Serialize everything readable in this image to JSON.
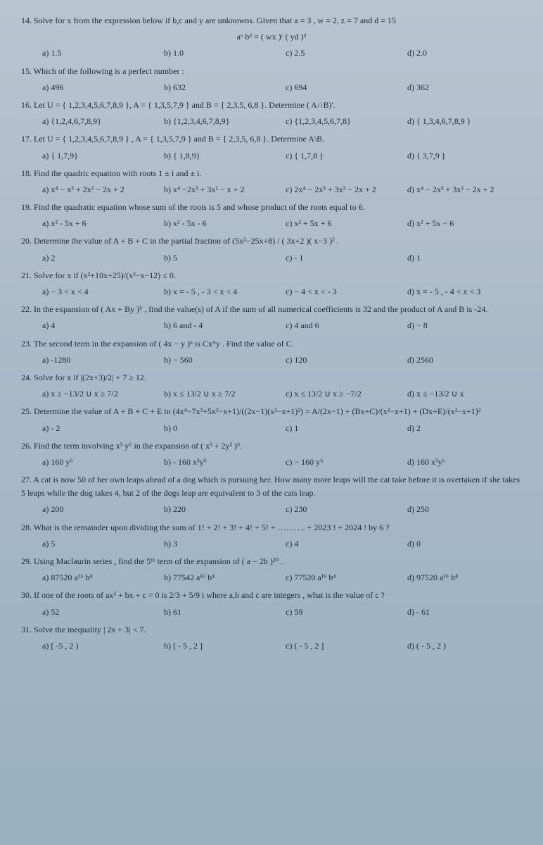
{
  "q14": {
    "text": "14. Solve for x from the expression below if b,c and y are unknowns. Given that a = 3 , w = 2, z = 7 and d = 15",
    "formula": "aˣ bᵈ = ( wx )ᶜ ( yd )ᵈ",
    "opts": [
      "a)  1.5",
      "b) 1.0",
      "c) 2.5",
      "d) 2.0"
    ]
  },
  "q15": {
    "text": "15. Which of the following is a perfect number :",
    "opts": [
      "a)  496",
      "b) 632",
      "c) 694",
      "d) 362"
    ]
  },
  "q16": {
    "text": "16. Let U = { 1,2,3,4,5,6,7,8,9 }, A = { 1,3,5,7,9 } and B = { 2,3,5, 6,8 }. Determine ( A∩B)'.",
    "opts": [
      "a)  {1,2,4,6,7,8,9}",
      "b) {1,2,3,4,6,7,8,9}",
      "c) {1,2,3,4,5,6,7,8}",
      "d) { 1,3,4,6,7,8,9 }"
    ]
  },
  "q17": {
    "text": "17. Let U = { 1,2,3,4,5,6,7,8,9 } , A = { 1,3,5,7,9 } and B = { 2,3,5, 6,8 }. Determine A\\B.",
    "opts": [
      "a)  { 1,7,9}",
      "b) { 1,8,9}",
      "c) { 1,7,8 }",
      "d) { 3,7,9 }"
    ]
  },
  "q18": {
    "text": "18. Find the quadric equation with roots  1 ± i and ± i.",
    "opts": [
      "a)  x⁴ − x³ + 2x² − 2x + 2",
      "b) x⁴ −2x³ + 3x² − x + 2",
      "c)  2x⁴ − 2x³ + 3x² − 2x + 2",
      "d) x⁴ − 2x³ + 3x² − 2x + 2"
    ]
  },
  "q19": {
    "text": "19. Find the quadratic equation whose sum of the roots is 5 and whose product of the roots equal to 6.",
    "opts": [
      "a)  x² - 5x + 6",
      "b) x² - 5x - 6",
      "c) x² + 5x + 6",
      "d) x² + 5x − 6"
    ]
  },
  "q20": {
    "text": "20. Determine the value of A + B + C in the partial fraction of  (5x²−25x+8) / ( 3x+2 )( x−3 )² .",
    "opts": [
      "a)  2",
      "b) 5",
      "c) - 1",
      "d)  1"
    ]
  },
  "q21": {
    "text": "21. Solve for x  if  (x²+10x+25)/(x²−x−12)  ≤ 0.",
    "opts": [
      "a)  − 3 < x < 4",
      "b) x = - 5 , - 3 < x < 4",
      "c) − 4 < x < - 3",
      "d) x = - 5 , - 4 < x < 3"
    ]
  },
  "q22": {
    "text": "22. In the expansion of ( Ax + By )⁵ , find the value(s) of A if the sum of all numerical coefficients is 32 and the product of A and B is -24.",
    "opts": [
      "a)   4",
      "b) 6 and - 4",
      "c) 4 and 6",
      "d) − 8"
    ]
  },
  "q23": {
    "text": "23. The second term in the expansion of ( 4x − y )ⁿ is Cxᴬy . Find the value of C.",
    "opts": [
      "a)  -1280",
      "b) − 560",
      "c)  120",
      "d) 2560"
    ]
  },
  "q24": {
    "text": "24. Solve for x  if  |(2x+3)/2| + 7 ≥ 12.",
    "opts": [
      "a)  x ≥ −13/2 ∪ x ≥ 7/2",
      "b) x ≤ 13/2 ∪ x ≥ 7/2",
      "c) x ≤ 13/2 ∪ x ≥ −7/2",
      "d) x ≤ −13/2 ∪ x"
    ]
  },
  "q25": {
    "text": "25. Determine the value of A + B + C + E  in   (4x⁴−7x³+5x²−x+1)/((2x−1)(x²−x+1)²) = A/(2x−1) + (Bx+C)/(x²−x+1) + (Dx+E)/(x²−x+1)²",
    "opts": [
      "a)  - 2",
      "b) 0",
      "c) 1",
      "d)  2"
    ]
  },
  "q26": {
    "text": "26. Find the term involving x³ y⁶ in the expansion of ( x³ + 2y² )⁶.",
    "opts": [
      "a)  160 y⁶",
      "b) - 160 x³y⁶",
      "c) − 160 y⁶",
      "d)  160 x³y⁶"
    ]
  },
  "q27": {
    "text": "27. A cat is now 50 of her own leaps ahead of a dog which is pursuing her. How many more leaps will the cat take before it is overtaken if she takes 5 leaps while the dog takes 4, but 2 of the dogs leap are equivalent to 3 of the cats leap.",
    "opts": [
      "a) 200",
      "b) 220",
      "c) 230",
      "d) 250"
    ]
  },
  "q28": {
    "text": "28. What is the remainder upon dividing the sum of   1! + 2! + 3! + 4! + 5! + ………. + 2023 ! + 2024 !   by  6 ?",
    "opts": [
      "a)  5",
      "b)  3",
      "c) 4",
      "d) 0"
    ]
  },
  "q29": {
    "text": "29. Using Maclaurin series , find the 5ᵗʰ term of the expansion of ( a − 2b )²⁰ .",
    "opts": [
      "a)  87520 a¹⁶ b⁴",
      "b) 77542 a¹⁶ b⁴",
      "c) 77520 a¹⁶ b⁴",
      "d) 97520 a¹⁶ b⁴"
    ]
  },
  "q30": {
    "text": "30. If one of the roots of ax² + bx + c = 0 is  2/3 + 5/9 i  where a,b and c are integers , what is the value of c ?",
    "opts": [
      "a)  52",
      "b)  61",
      "c) 59",
      "d) - 61"
    ]
  },
  "q31": {
    "text": "31. Solve the inequality | 2x + 3| < 7.",
    "opts": [
      "a) [ -5 , 2 )",
      "b) [ - 5 , 2 ]",
      "c) ( - 5 , 2 ]",
      "d) ( - 5 , 2 )"
    ]
  }
}
